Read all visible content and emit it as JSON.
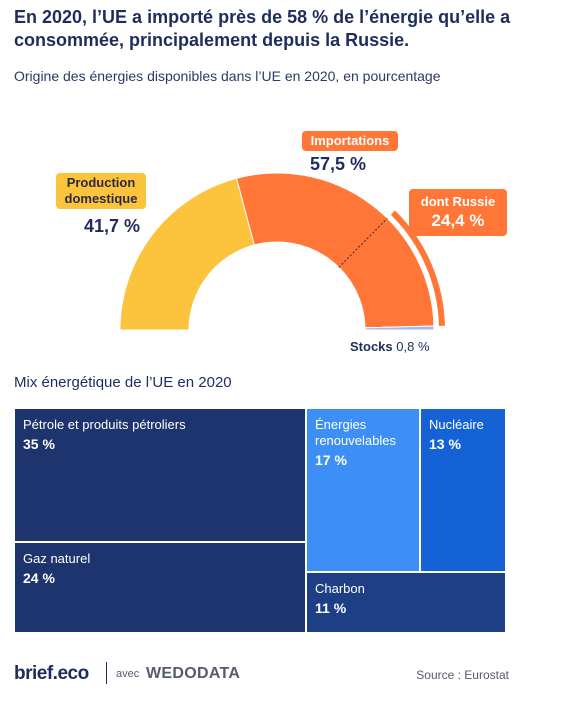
{
  "header": {
    "title": "En 2020, l’UE a importé près de 58 % de l’énergie qu’elle a consommée, principalement depuis la Russie.",
    "subtitle": "Origine des énergies disponibles dans l’UE en 2020, en pourcentage"
  },
  "colors": {
    "production": "#fcc33c",
    "importations": "#ff7636",
    "stocks": "#a9b8e8",
    "petrole": "#1e346e",
    "gaz": "#1e346e",
    "renouvelables": "#3d8ff5",
    "nucleaire": "#1562d6",
    "charbon": "#1e3f86"
  },
  "chart_data": [
    {
      "type": "pie",
      "subtype": "semi-donut",
      "title": "Origine des énergies disponibles dans l’UE en 2020, en pourcentage",
      "slices": [
        {
          "label": "Production domestique",
          "value": 41.7,
          "value_label": "41,7 %"
        },
        {
          "label": "Importations",
          "value": 57.5,
          "value_label": "57,5 %"
        },
        {
          "label": "Stocks",
          "value": 0.8,
          "value_label": "0,8 %"
        }
      ],
      "sub_slice": {
        "label": "dont Russie",
        "value": 24.4,
        "value_label": "24,4 %",
        "parent": "Importations"
      }
    },
    {
      "type": "treemap",
      "title": "Mix énergétique de l’UE en 2020",
      "items": [
        {
          "label": "Pétrole et produits pétroliers",
          "value": 35,
          "value_label": "35 %"
        },
        {
          "label": "Gaz naturel",
          "value": 24,
          "value_label": "24 %"
        },
        {
          "label": "Énergies renouvelables",
          "value": 17,
          "value_label": "17 %"
        },
        {
          "label": "Nucléaire",
          "value": 13,
          "value_label": "13 %"
        },
        {
          "label": "Charbon",
          "value": 11,
          "value_label": "11 %"
        }
      ]
    }
  ],
  "labels": {
    "production_1": "Production",
    "production_2": "domestique",
    "importations": "Importations",
    "russie": "dont Russie",
    "stocks_label": "Stocks",
    "stocks_value": "0,8 %"
  },
  "footer": {
    "logo": "brief.eco",
    "avec": "avec",
    "partner": "WEDODATA",
    "source": "Source : Eurostat"
  }
}
